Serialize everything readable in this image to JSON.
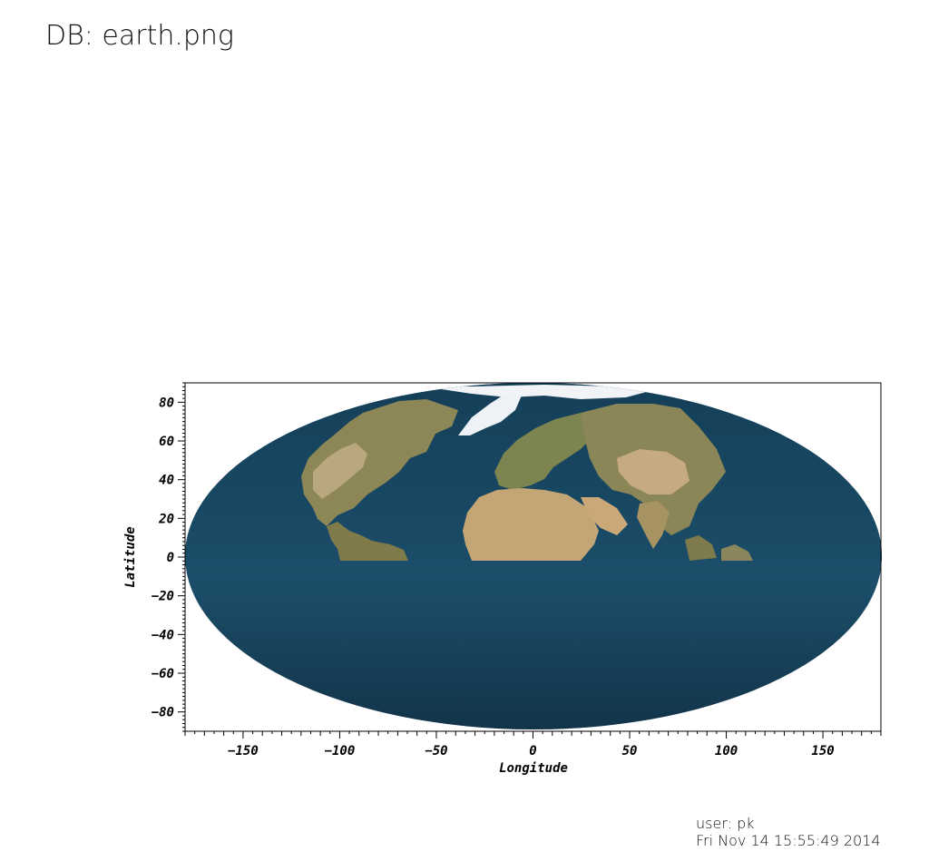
{
  "header": {
    "db_label": "DB: earth.png"
  },
  "plot": {
    "projection": "mollweide",
    "x_axis": {
      "title": "Longitude",
      "range": [
        -180,
        180
      ],
      "major_ticks": [
        -150,
        -100,
        -50,
        0,
        50,
        100,
        150
      ],
      "minor_step": 5
    },
    "y_axis": {
      "title": "Latitude",
      "range": [
        -90,
        90
      ],
      "major_ticks": [
        -80,
        -60,
        -40,
        -20,
        0,
        20,
        40,
        60,
        80
      ],
      "minor_step": 2
    },
    "colors": {
      "ocean_north": "#1d4e6b",
      "ocean_south": "#1f5a78",
      "ocean_deep": "#143a52",
      "land": "#b49a6c",
      "vegetation": "#6e7a48",
      "ice": "#eef2f6"
    }
  },
  "footer": {
    "user": "user: pk",
    "timestamp": "Fri Nov 14 15:55:49 2014"
  }
}
